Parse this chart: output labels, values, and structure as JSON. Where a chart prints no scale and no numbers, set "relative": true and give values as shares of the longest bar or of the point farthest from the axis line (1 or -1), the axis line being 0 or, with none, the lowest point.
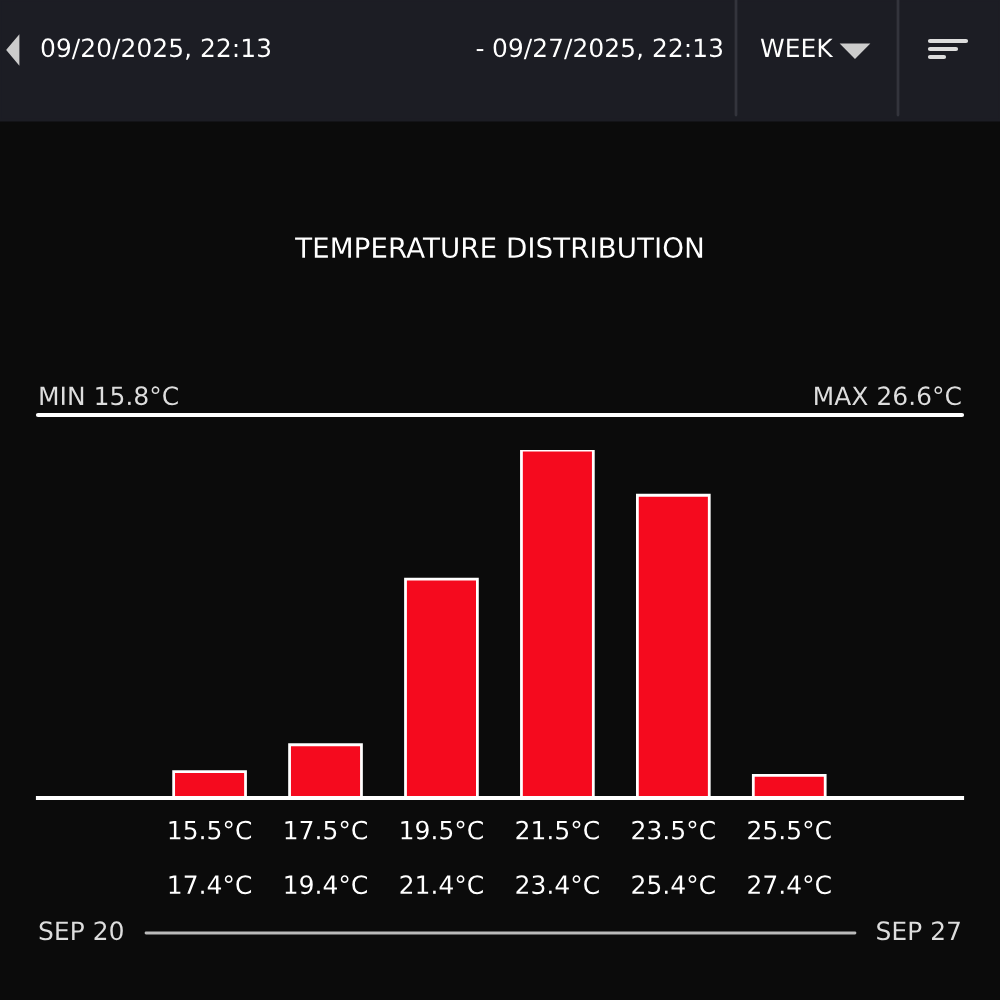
{
  "chart_data": {
    "type": "bar",
    "title": "TEMPERATURE DISTRIBUTION",
    "relative": true,
    "categories": [
      "15.5°C\n17.4°C",
      "17.5°C\n19.4°C",
      "19.5°C\n21.4°C",
      "21.5°C\n23.4°C",
      "23.5°C\n25.4°C",
      "25.5°C\n27.4°C"
    ],
    "values": [
      0.076,
      0.153,
      0.629,
      1,
      0.87,
      0.065
    ],
    "color": "#f50a1e",
    "annotations": [
      "09/20/2025, 22:13",
      "-",
      "09/27/2025, 22:13",
      "WEEK",
      "MIN 15.8°C",
      "MAX 26.6°C",
      "SEP 20",
      "SEP 27"
    ],
    "grid": false,
    "legend": false
  }
}
